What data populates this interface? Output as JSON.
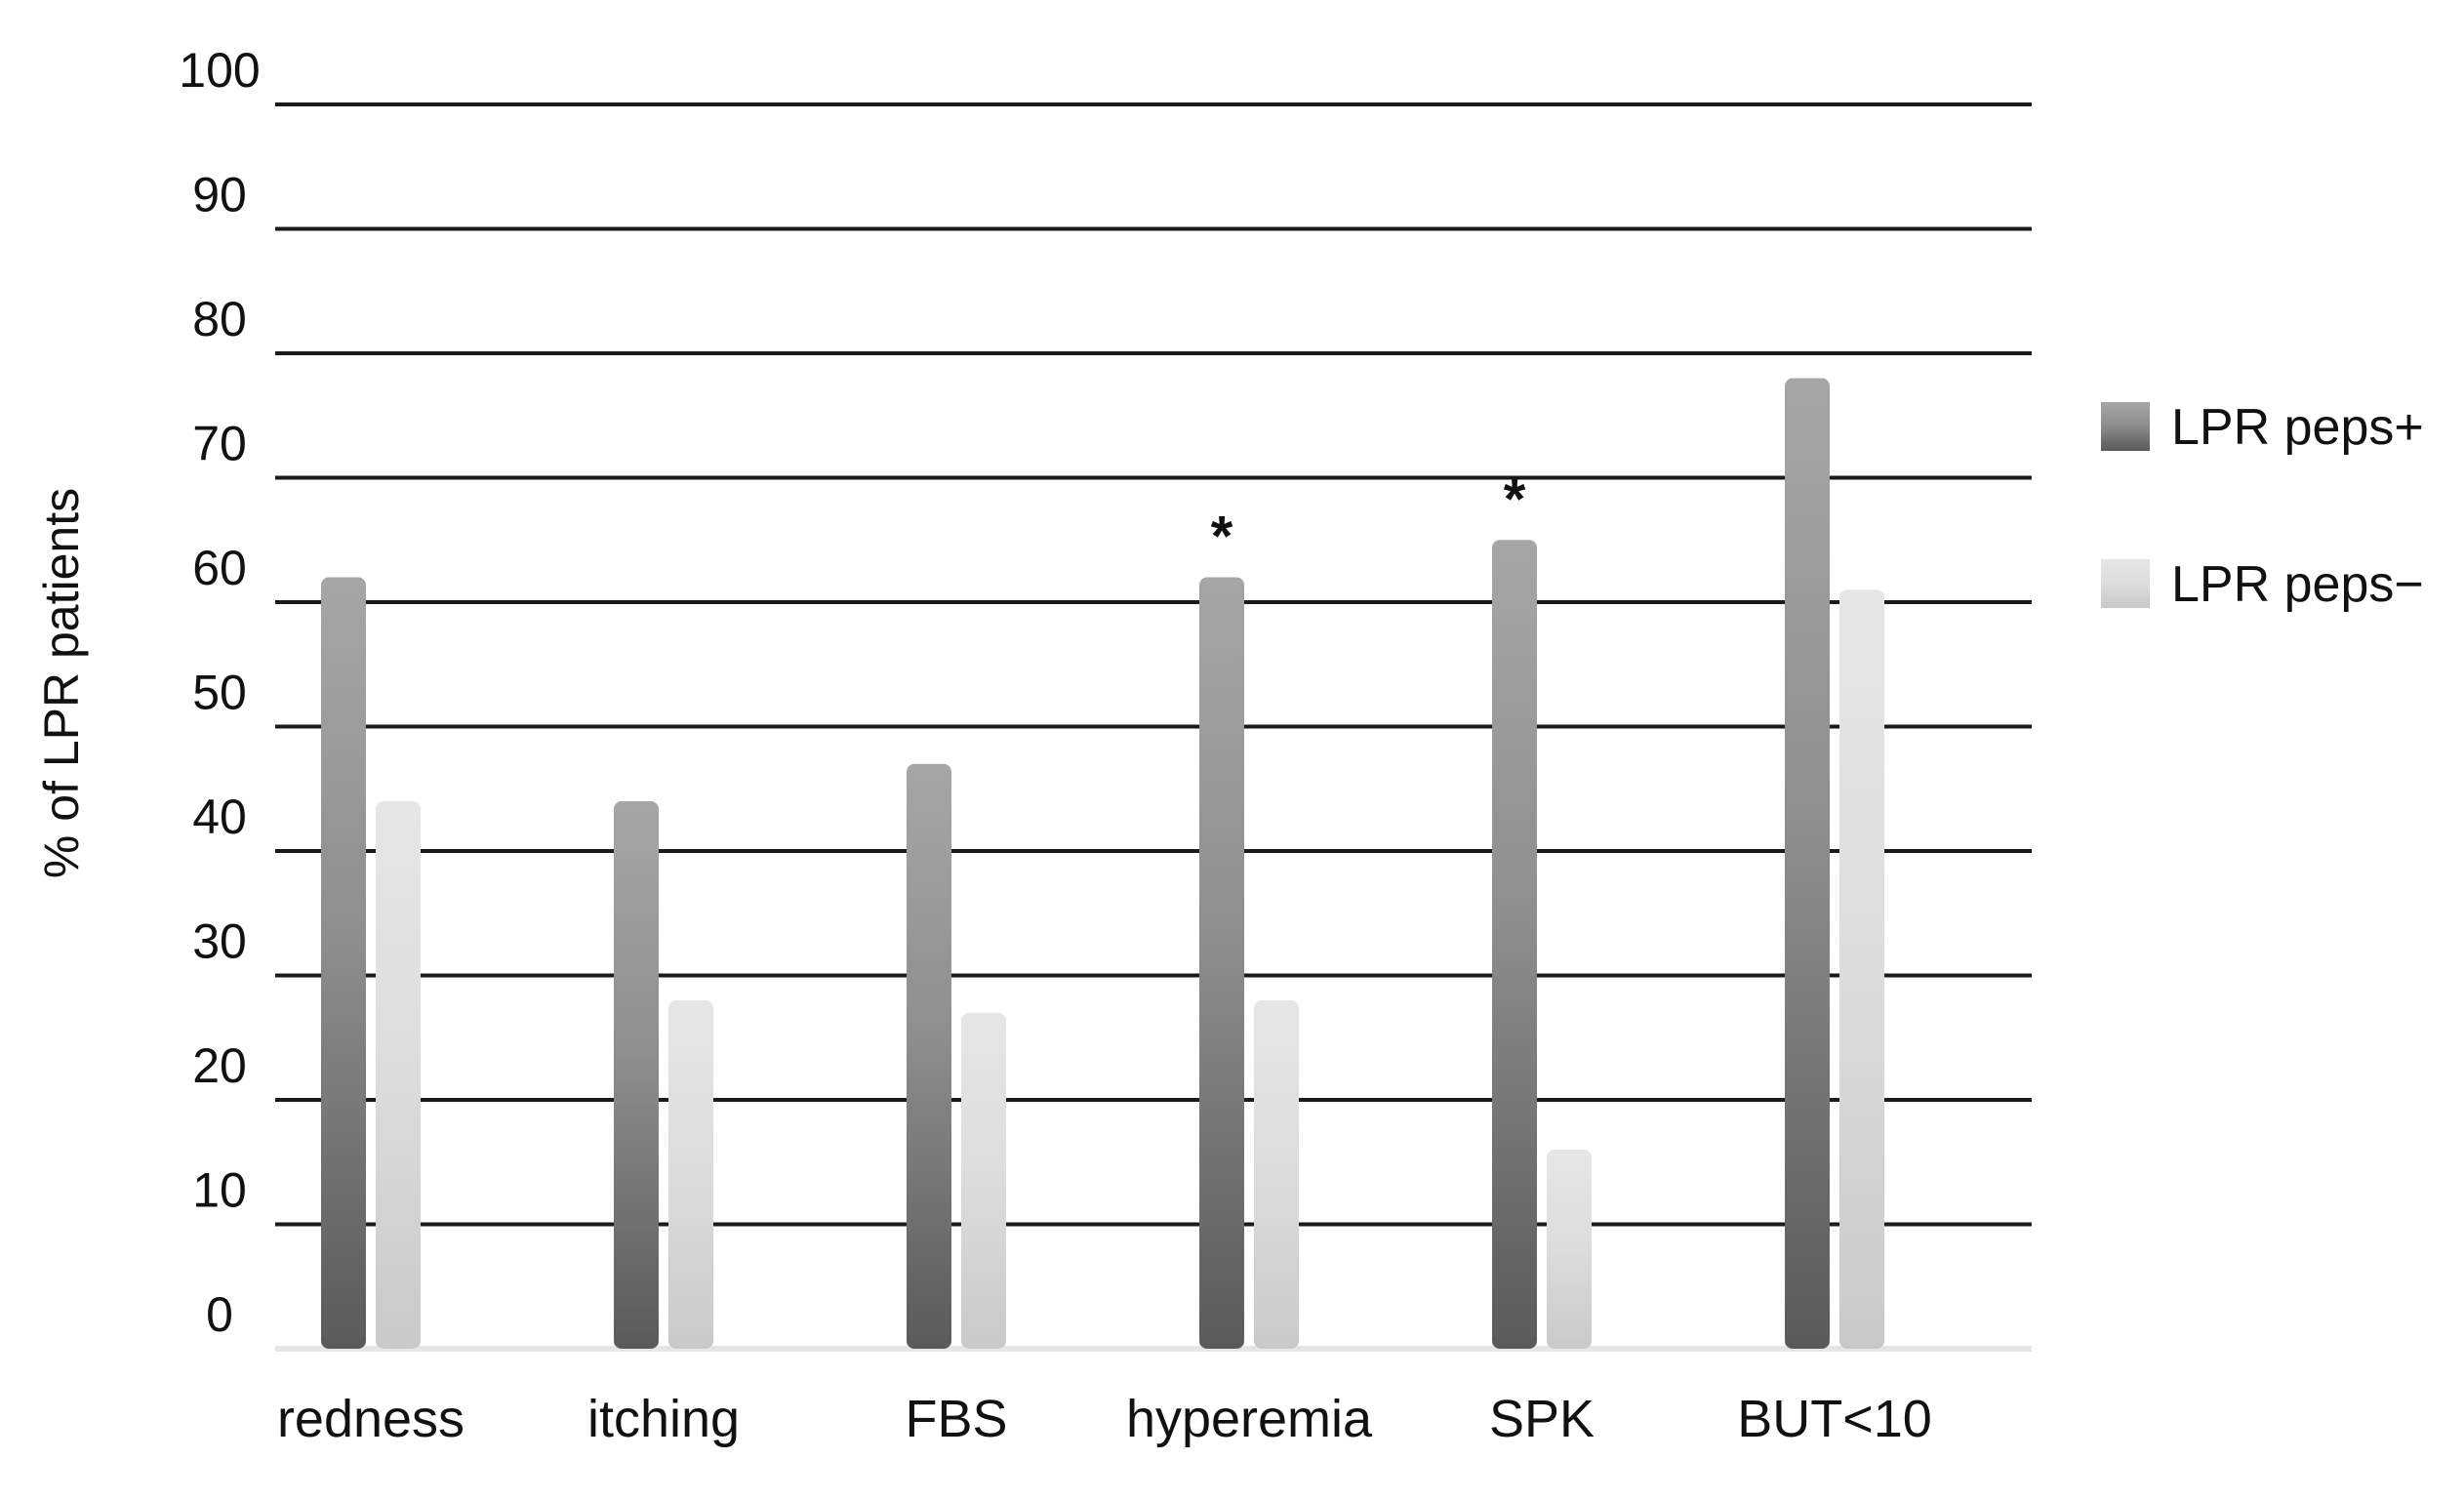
{
  "chart_data": {
    "type": "bar",
    "title": "",
    "xlabel": "",
    "ylabel": "% of LPR patients",
    "ylim": [
      0,
      100
    ],
    "yticks": [
      "0",
      "10",
      "20",
      "30",
      "40",
      "50",
      "60",
      "70",
      "80",
      "90",
      "100"
    ],
    "grid": true,
    "legend_position": "right",
    "categories": [
      "redness",
      "itching",
      "FBS",
      "hyperemia",
      "SPK",
      "BUT<10"
    ],
    "series": [
      {
        "name": "LPR peps+",
        "values": [
          62,
          44,
          47,
          62,
          65,
          78
        ],
        "color": "#8c8c8c"
      },
      {
        "name": "LPR peps−",
        "values": [
          44,
          28,
          27,
          28,
          16,
          61
        ],
        "color": "#d9d9d9"
      }
    ],
    "annotations": [
      {
        "category": "hyperemia",
        "text": "*"
      },
      {
        "category": "SPK",
        "text": "*"
      }
    ]
  }
}
